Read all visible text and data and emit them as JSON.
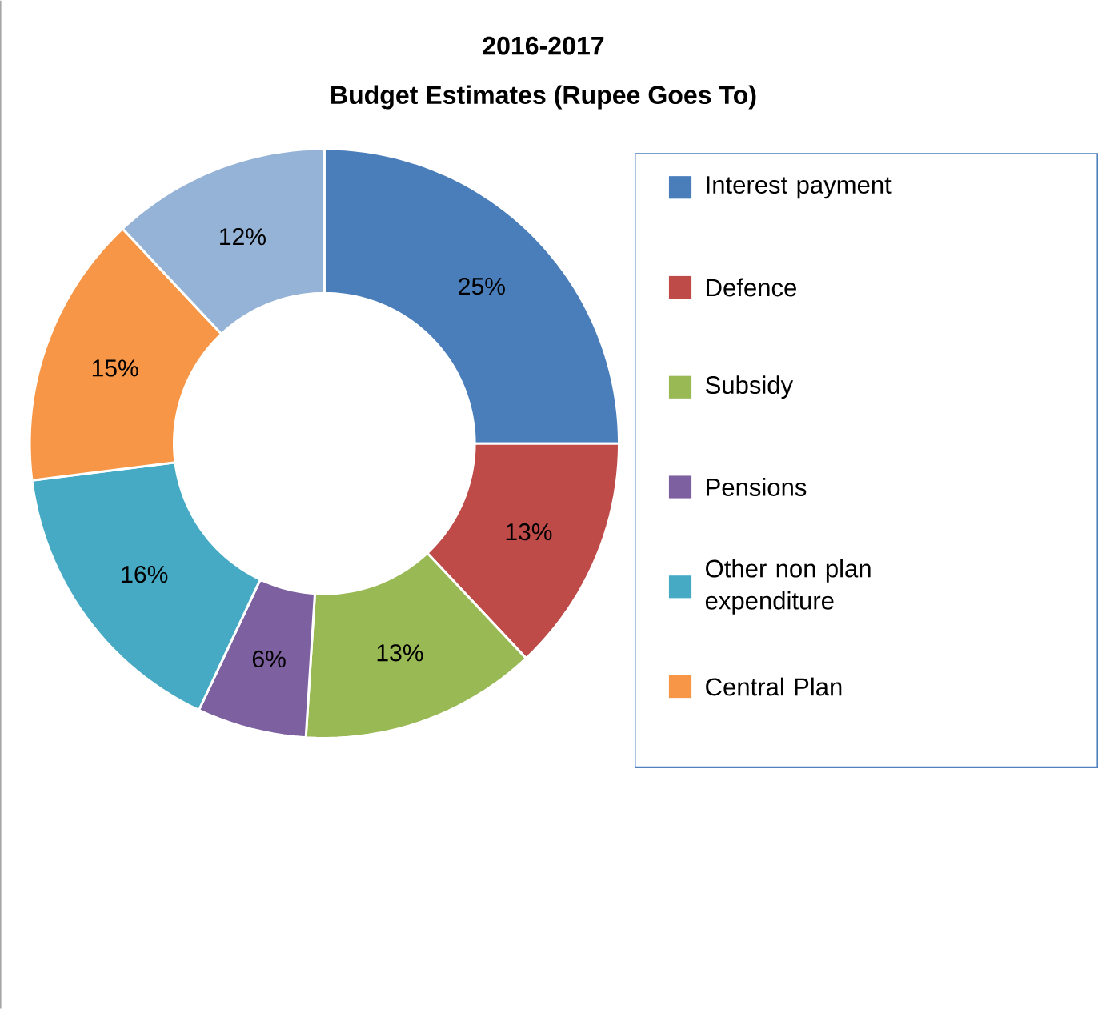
{
  "chart_data": {
    "type": "donut",
    "title": "2016-2017",
    "subtitle": "Budget Estimates  (Rupee Goes To)",
    "categories": [
      "Interest payment",
      "Defence",
      "Subsidy",
      "Pensions",
      "Other non plan expenditure",
      "Central Plan",
      null
    ],
    "values": [
      25,
      13,
      13,
      6,
      16,
      15,
      12
    ],
    "value_labels": [
      "25%",
      "13%",
      "13%",
      "6%",
      "16%",
      "15%",
      "12%"
    ],
    "colors": [
      "#4a7ebb",
      "#be4b48",
      "#98b954",
      "#7d60a0",
      "#46aac5",
      "#f79646",
      "#95b3d7"
    ],
    "legend": "right"
  }
}
